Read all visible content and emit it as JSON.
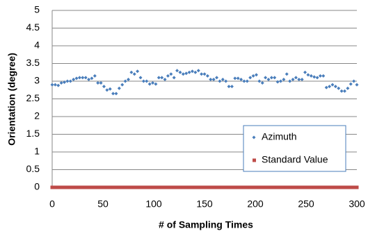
{
  "chart_data": {
    "type": "scatter",
    "xlabel": "# of Sampling Times",
    "ylabel": "Orientation (degree)",
    "x": [
      0,
      3,
      6,
      9,
      12,
      15,
      18,
      21,
      24,
      27,
      30,
      33,
      36,
      39,
      42,
      45,
      48,
      51,
      54,
      57,
      60,
      63,
      66,
      69,
      72,
      75,
      78,
      81,
      84,
      87,
      90,
      93,
      96,
      99,
      102,
      105,
      108,
      111,
      114,
      117,
      120,
      123,
      126,
      129,
      132,
      135,
      138,
      141,
      144,
      147,
      150,
      153,
      156,
      159,
      162,
      165,
      168,
      171,
      174,
      177,
      180,
      183,
      186,
      189,
      192,
      195,
      198,
      201,
      204,
      207,
      210,
      213,
      216,
      219,
      222,
      225,
      228,
      231,
      234,
      237,
      240,
      243,
      246,
      249,
      252,
      255,
      258,
      261,
      264,
      267,
      270,
      273,
      276,
      279,
      282,
      285,
      288,
      291,
      294,
      297,
      300
    ],
    "series": [
      {
        "name": "Azimuth",
        "color": "#4a7ebb",
        "marker": "diamond",
        "values": [
          2.9,
          2.9,
          2.88,
          2.95,
          2.97,
          3.0,
          3.0,
          3.05,
          3.08,
          3.1,
          3.1,
          3.1,
          3.05,
          3.08,
          3.15,
          2.95,
          2.95,
          2.85,
          2.75,
          2.78,
          2.65,
          2.65,
          2.8,
          2.9,
          3.0,
          3.05,
          3.25,
          3.2,
          3.28,
          3.1,
          3.0,
          3.0,
          2.92,
          2.95,
          2.92,
          3.1,
          3.1,
          3.05,
          3.15,
          3.2,
          3.1,
          3.3,
          3.25,
          3.2,
          3.22,
          3.25,
          3.28,
          3.25,
          3.3,
          3.2,
          3.2,
          3.15,
          3.05,
          3.05,
          3.1,
          3.0,
          3.05,
          3.0,
          2.85,
          2.85,
          3.08,
          3.08,
          3.05,
          3.0,
          3.0,
          3.1,
          3.15,
          3.18,
          3.0,
          2.95,
          3.1,
          3.05,
          3.1,
          3.1,
          2.98,
          3.0,
          3.05,
          3.2,
          3.0,
          3.05,
          3.1,
          3.05,
          3.05,
          3.25,
          3.18,
          3.15,
          3.12,
          3.1,
          3.15,
          3.15,
          2.82,
          2.85,
          2.9,
          2.85,
          2.8,
          2.72,
          2.72,
          2.8,
          2.92,
          3.0,
          2.9
        ]
      },
      {
        "name": "Standard Value",
        "color": "#be4b48",
        "marker": "square",
        "values": [
          0,
          0,
          0,
          0,
          0,
          0,
          0,
          0,
          0,
          0,
          0,
          0,
          0,
          0,
          0,
          0,
          0,
          0,
          0,
          0,
          0,
          0,
          0,
          0,
          0,
          0,
          0,
          0,
          0,
          0,
          0,
          0,
          0,
          0,
          0,
          0,
          0,
          0,
          0,
          0,
          0,
          0,
          0,
          0,
          0,
          0,
          0,
          0,
          0,
          0,
          0,
          0,
          0,
          0,
          0,
          0,
          0,
          0,
          0,
          0,
          0,
          0,
          0,
          0,
          0,
          0,
          0,
          0,
          0,
          0,
          0,
          0,
          0,
          0,
          0,
          0,
          0,
          0,
          0,
          0,
          0,
          0,
          0,
          0,
          0,
          0,
          0,
          0,
          0,
          0,
          0,
          0,
          0,
          0,
          0,
          0,
          0,
          0,
          0,
          0,
          0
        ]
      }
    ],
    "xlim": [
      0,
      300
    ],
    "ylim": [
      0,
      5
    ],
    "xticks": [
      0,
      50,
      100,
      150,
      200,
      250,
      300
    ],
    "yticks": [
      0,
      0.5,
      1,
      1.5,
      2,
      2.5,
      3,
      3.5,
      4,
      4.5,
      5
    ],
    "grid": true,
    "legend": "lower right"
  }
}
